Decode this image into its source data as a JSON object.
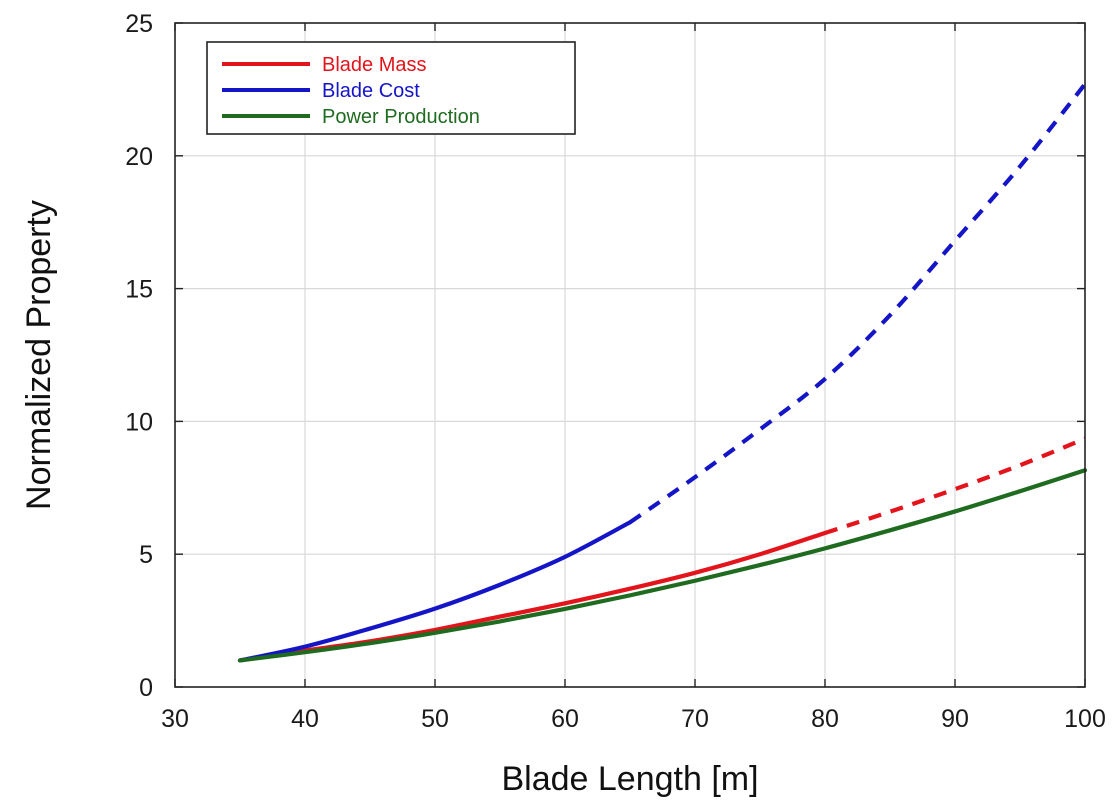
{
  "chart_data": {
    "type": "line",
    "title": "",
    "xlabel": "Blade Length [m]",
    "ylabel": "Normalized Property",
    "xlim": [
      30,
      100
    ],
    "ylim": [
      0,
      25
    ],
    "xticks": [
      30,
      40,
      50,
      60,
      70,
      80,
      90,
      100
    ],
    "yticks": [
      0,
      5,
      10,
      15,
      20,
      25
    ],
    "grid": true,
    "legend_position": "top-left",
    "series": [
      {
        "name": "Blade Mass",
        "color": "#e3141b",
        "solid_until_x": 80,
        "x": [
          35,
          40,
          45,
          50,
          55,
          60,
          65,
          70,
          75,
          80,
          85,
          90,
          95,
          100
        ],
        "y": [
          1.0,
          1.37,
          1.72,
          2.15,
          2.65,
          3.15,
          3.7,
          4.3,
          5.0,
          5.8,
          6.6,
          7.45,
          8.35,
          9.35
        ]
      },
      {
        "name": "Blade Cost",
        "color": "#1515c8",
        "solid_until_x": 65,
        "x": [
          35,
          40,
          45,
          50,
          55,
          60,
          65,
          70,
          75,
          80,
          85,
          90,
          95,
          100
        ],
        "y": [
          1.0,
          1.52,
          2.2,
          2.95,
          3.85,
          4.9,
          6.2,
          7.9,
          9.7,
          11.6,
          14.0,
          16.8,
          19.6,
          22.7
        ]
      },
      {
        "name": "Power Production",
        "color": "#1f6b1f",
        "solid_until_x": 100,
        "x": [
          35,
          40,
          45,
          50,
          55,
          60,
          65,
          70,
          75,
          80,
          85,
          90,
          95,
          100
        ],
        "y": [
          1.0,
          1.31,
          1.65,
          2.04,
          2.47,
          2.94,
          3.45,
          4.0,
          4.59,
          5.22,
          5.9,
          6.61,
          7.37,
          8.16
        ]
      }
    ]
  }
}
